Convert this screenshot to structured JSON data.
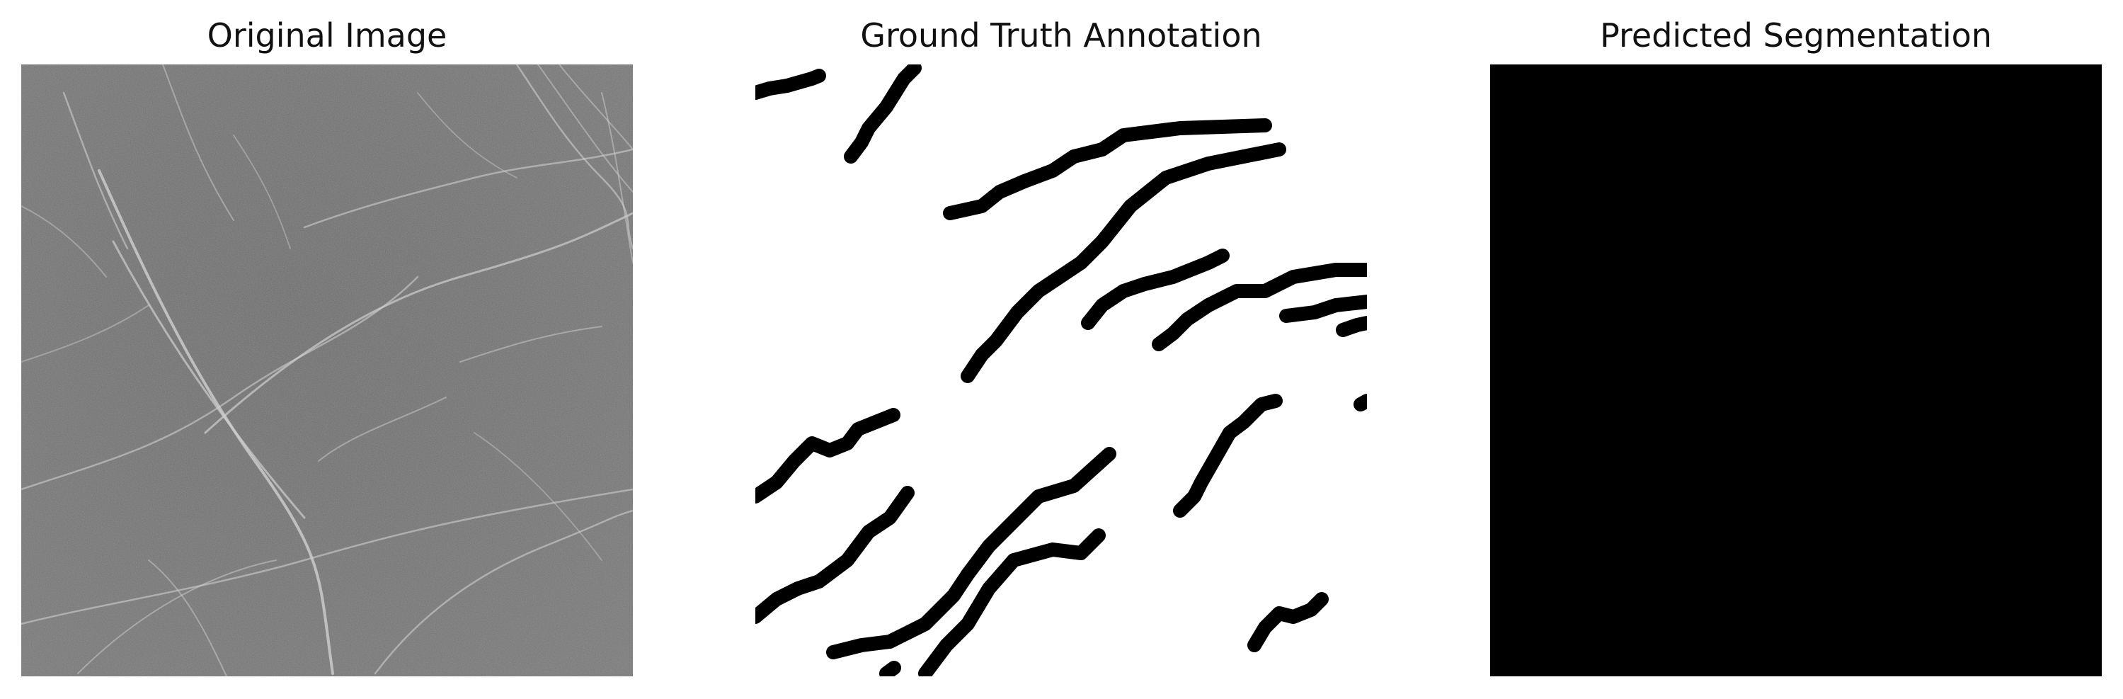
{
  "panels": [
    {
      "id": "original",
      "title": "Original Image"
    },
    {
      "id": "ground-truth",
      "title": "Ground Truth Annotation"
    },
    {
      "id": "prediction",
      "title": "Predicted Segmentation"
    }
  ],
  "colors": {
    "background": "#ffffff",
    "texture_base": "#6e6e6e",
    "crack_light": "#c8c8c8",
    "mask_foreground": "#000000",
    "mask_background": "#ffffff",
    "prediction_fill": "#000000"
  }
}
